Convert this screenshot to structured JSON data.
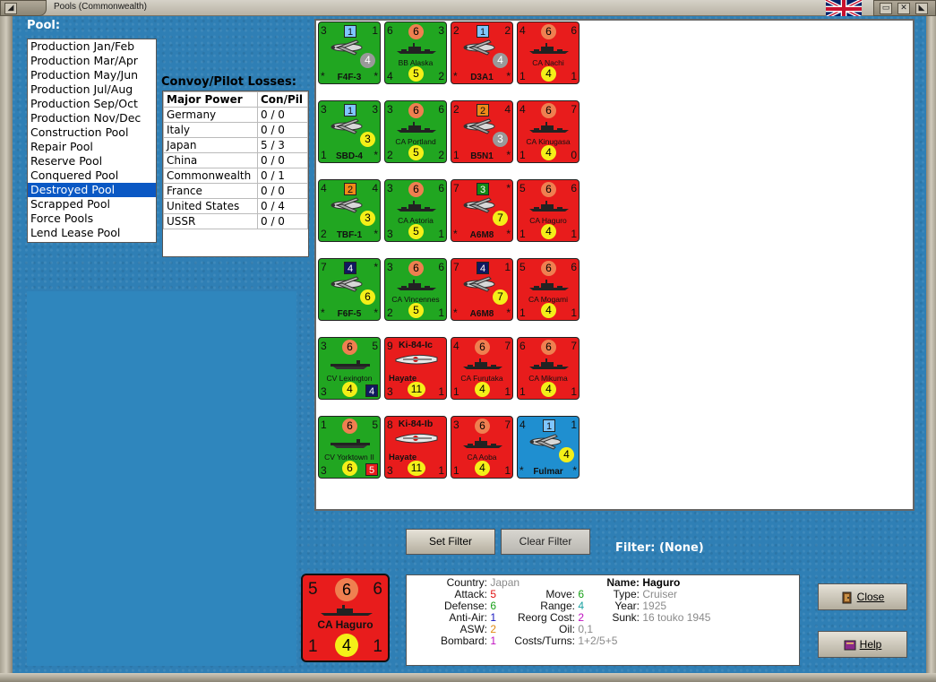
{
  "window": {
    "title": "Pools (Commonwealth)"
  },
  "pool": {
    "label": "Pool:",
    "items": [
      "Production Jan/Feb",
      "Production Mar/Apr",
      "Production May/Jun",
      "Production Jul/Aug",
      "Production Sep/Oct",
      "Production Nov/Dec",
      "Construction Pool",
      "Repair Pool",
      "Reserve Pool",
      "Conquered Pool",
      "Destroyed Pool",
      "Scrapped Pool",
      "Force Pools",
      "Lend Lease Pool"
    ],
    "selected": "Destroyed Pool"
  },
  "losses": {
    "title": "Convoy/Pilot Losses:",
    "headers": [
      "Major Power",
      "Con/Pil"
    ],
    "rows": [
      [
        "Germany",
        "0 / 0"
      ],
      [
        "Italy",
        "0 / 0"
      ],
      [
        "Japan",
        "5 / 3"
      ],
      [
        "China",
        "0 / 0"
      ],
      [
        "Commonwealth",
        "0 / 1"
      ],
      [
        "France",
        "0 / 0"
      ],
      [
        "United States",
        "0 / 4"
      ],
      [
        "USSR",
        "0 / 0"
      ]
    ]
  },
  "counters": [
    {
      "color": "green",
      "kind": "air",
      "tl": "3",
      "sq": "1",
      "sqc": "lb",
      "tr": "1",
      "circ": "4",
      "circc": "grey",
      "bl": "*",
      "name": "F4F-3",
      "br": "*"
    },
    {
      "color": "green",
      "kind": "ship",
      "tl": "6",
      "top": "6",
      "tr": "3",
      "name": "BB Alaska",
      "bl": "4",
      "yel": "5",
      "br": "2"
    },
    {
      "color": "red",
      "kind": "air",
      "tl": "2",
      "sq": "1",
      "sqc": "lb",
      "tr": "2",
      "circ": "4",
      "circc": "grey",
      "bl": "*",
      "name": "D3A1",
      "br": "*"
    },
    {
      "color": "red",
      "kind": "ship",
      "tl": "4",
      "top": "6",
      "tr": "6",
      "name": "CA Nachi",
      "bl": "1",
      "yel": "4",
      "br": "1"
    },
    {
      "color": "green",
      "kind": "air",
      "tl": "3",
      "sq": "1",
      "sqc": "lb",
      "tr": "3",
      "circ": "3",
      "circc": "yel",
      "bl": "1",
      "name": "SBD-4",
      "br": "*"
    },
    {
      "color": "green",
      "kind": "ship",
      "tl": "3",
      "top": "6",
      "tr": "6",
      "name": "CA Portland",
      "bl": "2",
      "yel": "5",
      "br": "2"
    },
    {
      "color": "red",
      "kind": "air",
      "tl": "2",
      "sq": "2",
      "sqc": "or",
      "tr": "4",
      "circ": "3",
      "circc": "grey",
      "bl": "1",
      "name": "B5N1",
      "br": "*"
    },
    {
      "color": "red",
      "kind": "ship",
      "tl": "4",
      "top": "6",
      "tr": "7",
      "name": "CA Kinugasa",
      "bl": "1",
      "yel": "4",
      "br": "0"
    },
    {
      "color": "green",
      "kind": "air",
      "tl": "4",
      "sq": "2",
      "sqc": "or",
      "tr": "4",
      "circ": "3",
      "circc": "yel",
      "bl": "2",
      "name": "TBF-1",
      "br": "*"
    },
    {
      "color": "green",
      "kind": "ship",
      "tl": "3",
      "top": "6",
      "tr": "6",
      "name": "CA Astoria",
      "bl": "3",
      "yel": "5",
      "br": "1"
    },
    {
      "color": "red",
      "kind": "air",
      "tl": "7",
      "sq": "3",
      "sqc": "gr",
      "tr": "*",
      "circ": "7",
      "circc": "yel",
      "bl": "*",
      "name": "A6M8",
      "br": "*"
    },
    {
      "color": "red",
      "kind": "ship",
      "tl": "5",
      "top": "6",
      "tr": "6",
      "name": "CA Haguro",
      "bl": "1",
      "yel": "4",
      "br": "1"
    },
    {
      "color": "green",
      "kind": "air",
      "tl": "7",
      "sq": "4",
      "sqc": "nv",
      "tr": "*",
      "circ": "6",
      "circc": "yel",
      "bl": "*",
      "name": "F6F-5",
      "br": "*"
    },
    {
      "color": "green",
      "kind": "ship",
      "tl": "3",
      "top": "6",
      "tr": "6",
      "name": "CA Vincennes",
      "bl": "2",
      "yel": "5",
      "br": "1"
    },
    {
      "color": "red",
      "kind": "air",
      "tl": "7",
      "sq": "4",
      "sqc": "nv",
      "tr": "1",
      "circ": "7",
      "circc": "yel",
      "bl": "*",
      "name": "A6M8",
      "br": "*"
    },
    {
      "color": "red",
      "kind": "ship",
      "tl": "5",
      "top": "6",
      "tr": "6",
      "name": "CA Mogami",
      "bl": "1",
      "yel": "4",
      "br": "1"
    },
    {
      "color": "green",
      "kind": "carrier",
      "tl": "3",
      "top": "6",
      "tr": "5",
      "name": "CV Lexington",
      "bl": "3",
      "yel": "4",
      "sqbr": "4",
      "sqbrc": "nv"
    },
    {
      "color": "red",
      "kind": "army",
      "tl": "9",
      "ktop": "Ki-84-Ic",
      "name": "Hayate",
      "bl": "3",
      "yel": "11",
      "br": "1"
    },
    {
      "color": "red",
      "kind": "ship",
      "tl": "4",
      "top": "6",
      "tr": "7",
      "name": "CA Furutaka",
      "bl": "1",
      "yel": "4",
      "br": "1"
    },
    {
      "color": "red",
      "kind": "ship",
      "tl": "6",
      "top": "6",
      "tr": "7",
      "name": "CA Mikuma",
      "bl": "1",
      "yel": "4",
      "br": "1"
    },
    {
      "color": "green",
      "kind": "carrier",
      "tl": "1",
      "top": "6",
      "tr": "5",
      "name": "CV Yorktown II",
      "bl": "3",
      "yel": "6",
      "sqbr": "5",
      "sqbrc": "red"
    },
    {
      "color": "red",
      "kind": "army",
      "tl": "8",
      "ktop": "Ki-84-Ib",
      "name": "Hayate",
      "bl": "3",
      "yel": "11",
      "br": "1"
    },
    {
      "color": "red",
      "kind": "ship",
      "tl": "3",
      "top": "6",
      "tr": "7",
      "name": "CA Aoba",
      "bl": "1",
      "yel": "4",
      "br": "1"
    },
    {
      "color": "blue",
      "kind": "air",
      "tl": "4",
      "sq": "1",
      "sqc": "lb",
      "tr": "1",
      "circ": "4",
      "circc": "yel",
      "bl": "*",
      "name": "Fulmar",
      "br": "*"
    }
  ],
  "buttons": {
    "set_filter": "Set Filter",
    "clear_filter": "Clear Filter",
    "close": "Close",
    "help": "Help"
  },
  "filter": {
    "label": "Filter:",
    "value": "(None)",
    "text": "Filter:  (None)"
  },
  "selected_unit": {
    "big_counter": {
      "tl": "5",
      "top": "6",
      "tr": "6",
      "name": "CA Haguro",
      "bl": "1",
      "yel": "4",
      "br": "1"
    },
    "country_label": "Country:",
    "country": "Japan",
    "attack_label": "Attack:",
    "attack": "5",
    "defense_label": "Defense:",
    "defense": "6",
    "antiair_label": "Anti-Air:",
    "antiair": "1",
    "asw_label": "ASW:",
    "asw": "2",
    "bombard_label": "Bombard:",
    "bombard": "1",
    "move_label": "Move:",
    "move": "6",
    "range_label": "Range:",
    "range": "4",
    "reorg_label": "Reorg Cost:",
    "reorg": "2",
    "oil_label": "Oil:",
    "oil": "0,1",
    "costs_label": "Costs/Turns:",
    "costs": "1+2/5+5",
    "name_label": "Name:",
    "name": "Haguro",
    "type_label": "Type:",
    "type": "Cruiser",
    "year_label": "Year:",
    "year": "1925",
    "sunk_label": "Sunk:",
    "sunk": "16 touko 1945"
  },
  "colors": {
    "green": "#21a621",
    "red": "#e81c1c",
    "blue": "#1f8fd0",
    "selection": "#0a58c4",
    "attack": "#e01010",
    "defense": "#18a018",
    "antiair": "#1818c0",
    "asw": "#e08a10",
    "bombard": "#c010c0",
    "grey_text": "#8a8a8a"
  }
}
